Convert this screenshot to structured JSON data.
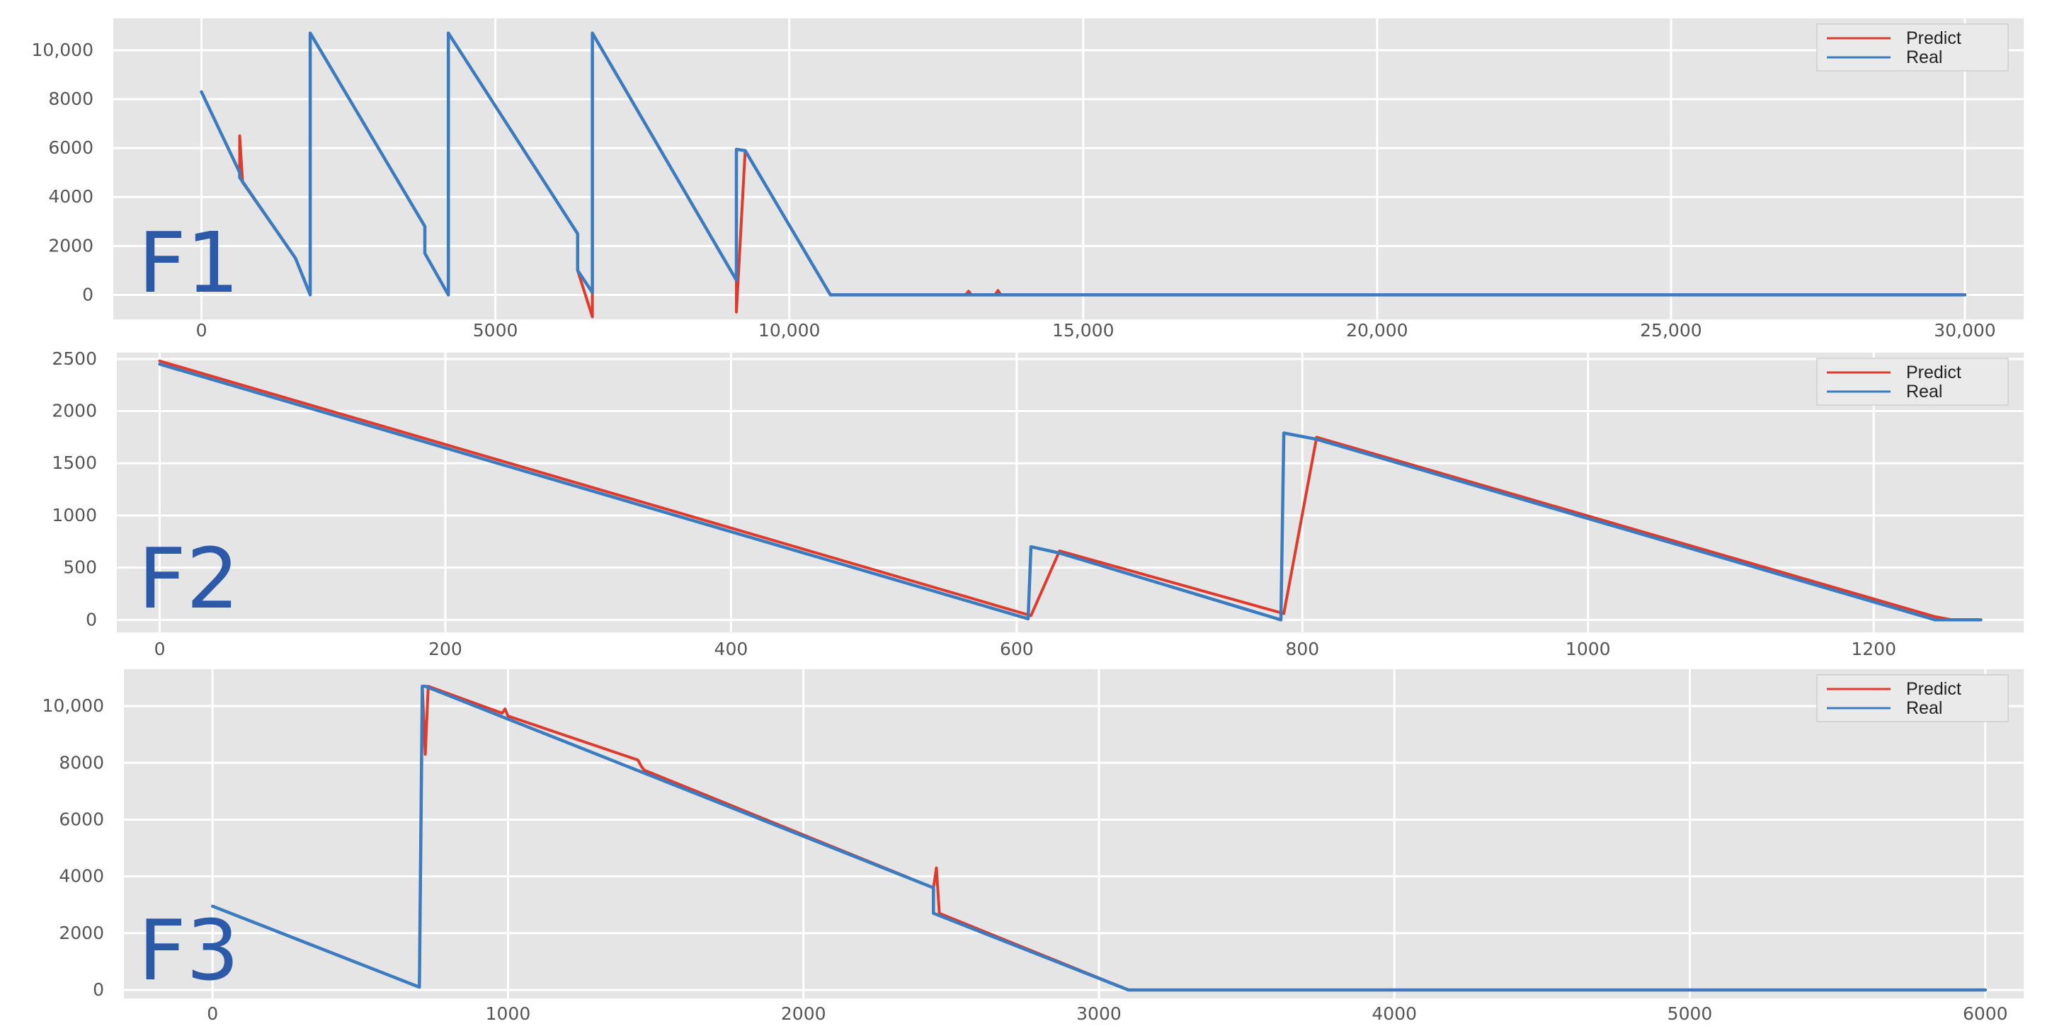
{
  "colors": {
    "background": "#ffffff",
    "panel": "#e5e5e5",
    "grid": "#ffffff",
    "predict": "#e03a2c",
    "real": "#3b7bbf",
    "panel_label": "#2c5aa8"
  },
  "chart_data": [
    {
      "type": "line",
      "panel_label": "F1",
      "legend": {
        "position": "top-right",
        "entries": [
          "Predict",
          "Real"
        ]
      },
      "grid": true,
      "xlim": [
        -1500,
        31000
      ],
      "ylim": [
        -1000,
        11300
      ],
      "x_ticks": [
        0,
        5000,
        10000,
        15000,
        20000,
        25000,
        30000
      ],
      "x_tick_labels": [
        "0",
        "5000",
        "10,000",
        "15,000",
        "20,000",
        "25,000",
        "30,000"
      ],
      "y_ticks": [
        0,
        2000,
        4000,
        6000,
        8000,
        10000
      ],
      "y_tick_labels": [
        "0",
        "2000",
        "4000",
        "6000",
        "8000",
        "10,000"
      ],
      "series": [
        {
          "name": "Real",
          "x": [
            0,
            650,
            650,
            1600,
            1850,
            1850,
            3800,
            3800,
            4200,
            4200,
            6400,
            6400,
            6650,
            6650,
            9100,
            9100,
            9250,
            10700,
            30000
          ],
          "y": [
            8300,
            5000,
            4800,
            1500,
            0,
            10700,
            2800,
            1700,
            0,
            10700,
            2500,
            1000,
            100,
            10700,
            600,
            5950,
            5900,
            0,
            0
          ]
        },
        {
          "name": "Predict",
          "x": [
            0,
            650,
            650,
            700,
            1600,
            1850,
            1850,
            3800,
            3800,
            4200,
            4200,
            6400,
            6400,
            6650,
            6650,
            9100,
            9100,
            9250,
            10700,
            13000,
            13050,
            13100,
            13500,
            13550,
            13600,
            30000
          ],
          "y": [
            8300,
            5000,
            6500,
            4600,
            1500,
            0,
            10700,
            2800,
            1700,
            0,
            10700,
            2500,
            1000,
            -900,
            10700,
            600,
            -700,
            5900,
            0,
            0,
            150,
            0,
            0,
            180,
            0,
            0
          ]
        }
      ]
    },
    {
      "type": "line",
      "panel_label": "F2",
      "legend": {
        "position": "top-right",
        "entries": [
          "Predict",
          "Real"
        ]
      },
      "grid": true,
      "xlim": [
        -30,
        1305
      ],
      "ylim": [
        -120,
        2560
      ],
      "x_ticks": [
        0,
        200,
        400,
        600,
        800,
        1000,
        1200
      ],
      "x_tick_labels": [
        "0",
        "200",
        "400",
        "600",
        "800",
        "1000",
        "1200"
      ],
      "y_ticks": [
        0,
        500,
        1000,
        1500,
        2000,
        2500
      ],
      "y_tick_labels": [
        "0",
        "500",
        "1000",
        "1500",
        "2000",
        "2500"
      ],
      "series": [
        {
          "name": "Real",
          "x": [
            0,
            608,
            610,
            630,
            785,
            787,
            810,
            1243,
            1255,
            1275
          ],
          "y": [
            2450,
            10,
            700,
            640,
            0,
            1790,
            1730,
            0,
            0,
            0
          ]
        },
        {
          "name": "Predict",
          "x": [
            0,
            610,
            630,
            787,
            810,
            1243,
            1255
          ],
          "y": [
            2480,
            40,
            660,
            60,
            1750,
            30,
            0
          ]
        }
      ]
    },
    {
      "type": "line",
      "panel_label": "F3",
      "legend": {
        "position": "top-right",
        "entries": [
          "Predict",
          "Real"
        ]
      },
      "grid": true,
      "xlim": [
        -300,
        6130
      ],
      "ylim": [
        -300,
        11300
      ],
      "x_ticks": [
        0,
        1000,
        2000,
        3000,
        4000,
        5000,
        6000
      ],
      "x_tick_labels": [
        "0",
        "1000",
        "2000",
        "3000",
        "4000",
        "5000",
        "6000"
      ],
      "y_ticks": [
        0,
        2000,
        4000,
        6000,
        8000,
        10000
      ],
      "y_tick_labels": [
        "0",
        "2000",
        "4000",
        "6000",
        "8000",
        "10,000"
      ],
      "series": [
        {
          "name": "Real",
          "x": [
            0,
            700,
            710,
            720,
            2440,
            2440,
            3100,
            6000
          ],
          "y": [
            2950,
            100,
            10700,
            10700,
            3600,
            2700,
            0,
            0
          ]
        },
        {
          "name": "Predict",
          "x": [
            0,
            700,
            710,
            720,
            730,
            980,
            990,
            1000,
            1440,
            1450,
            1460,
            2440,
            2450,
            2460,
            3100,
            6000
          ],
          "y": [
            2950,
            100,
            10700,
            8300,
            10700,
            9750,
            9900,
            9650,
            8100,
            7900,
            7750,
            3600,
            4300,
            2700,
            0,
            0
          ]
        }
      ]
    }
  ]
}
